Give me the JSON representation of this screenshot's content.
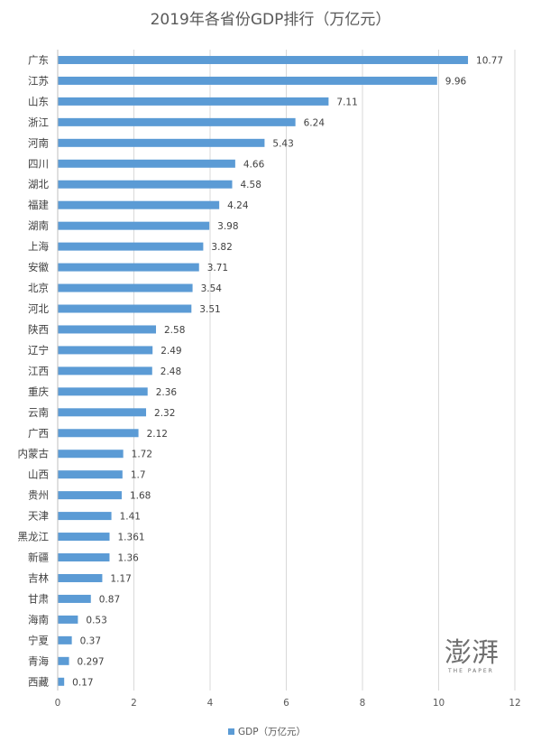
{
  "chart_data": {
    "type": "bar",
    "orientation": "horizontal",
    "title": "2019年各省份GDP排行（万亿元）",
    "categories": [
      "广东",
      "江苏",
      "山东",
      "浙江",
      "河南",
      "四川",
      "湖北",
      "福建",
      "湖南",
      "上海",
      "安徽",
      "北京",
      "河北",
      "陕西",
      "辽宁",
      "江西",
      "重庆",
      "云南",
      "广西",
      "内蒙古",
      "山西",
      "贵州",
      "天津",
      "黑龙江",
      "新疆",
      "吉林",
      "甘肃",
      "海南",
      "宁夏",
      "青海",
      "西藏"
    ],
    "value_labels": [
      "10.77",
      "9.96",
      "7.11",
      "6.24",
      "5.43",
      "4.66",
      "4.58",
      "4.24",
      "3.98",
      "3.82",
      "3.71",
      "3.54",
      "3.51",
      "2.58",
      "2.49",
      "2.48",
      "2.36",
      "2.32",
      "2.12",
      "1.72",
      "1.7",
      "1.68",
      "1.41",
      "1.361",
      "1.36",
      "1.17",
      "0.87",
      "0.53",
      "0.37",
      "0.297",
      "0.17"
    ],
    "series": [
      {
        "name": "GDP（万亿元）",
        "color": "#5B9BD5",
        "values": [
          10.77,
          9.96,
          7.11,
          6.24,
          5.43,
          4.66,
          4.58,
          4.24,
          3.98,
          3.82,
          3.71,
          3.54,
          3.51,
          2.58,
          2.49,
          2.48,
          2.36,
          2.32,
          2.12,
          1.72,
          1.7,
          1.68,
          1.41,
          1.361,
          1.36,
          1.17,
          0.87,
          0.53,
          0.37,
          0.297,
          0.17
        ]
      }
    ],
    "xlim": [
      0,
      12
    ],
    "x_ticks": [
      "0",
      "2",
      "4",
      "6",
      "8",
      "10",
      "12"
    ],
    "grid": "vertical",
    "legend": "bottom"
  },
  "watermark": {
    "text": "澎湃",
    "sub": "THE PAPER"
  }
}
